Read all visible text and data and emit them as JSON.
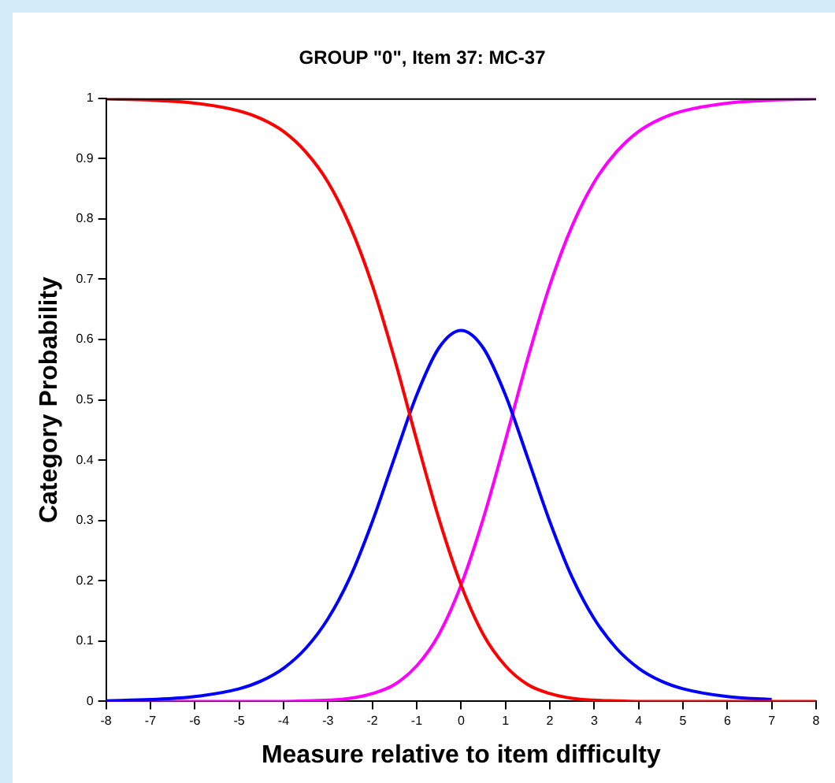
{
  "chart_data": {
    "type": "line",
    "title": "GROUP \"0\", Item 37: MC-37",
    "xlabel": "Measure relative to item difficulty",
    "ylabel": "Category Probability",
    "x": [
      -8,
      -7,
      -6,
      -5,
      -4.5,
      -4,
      -3.5,
      -3,
      -2.5,
      -2,
      -1.5,
      -1,
      -0.5,
      0,
      0.5,
      1,
      1.5,
      2,
      2.5,
      3,
      3.5,
      4,
      4.5,
      5,
      6,
      7,
      8
    ],
    "series": [
      {
        "color": "#ff0000",
        "values": [
          0.999,
          0.997,
          0.992,
          0.979,
          0.966,
          0.945,
          0.911,
          0.861,
          0.788,
          0.69,
          0.568,
          0.433,
          0.303,
          0.193,
          0.111,
          0.059,
          0.028,
          0.013,
          0.005,
          0.002,
          0.001,
          0,
          0,
          0,
          0,
          0,
          0
        ]
      },
      {
        "color": "#0000ff",
        "values": [
          0.001,
          0.003,
          0.008,
          0.021,
          0.034,
          0.055,
          0.088,
          0.137,
          0.206,
          0.298,
          0.404,
          0.508,
          0.586,
          0.615,
          0.586,
          0.508,
          0.404,
          0.298,
          0.206,
          0.137,
          0.088,
          0.055,
          0.034,
          0.021,
          0.008,
          0.003,
          null
        ]
      },
      {
        "color": "#ff00ff",
        "values": [
          0,
          0,
          0,
          0,
          0,
          0,
          0.001,
          0.002,
          0.005,
          0.013,
          0.028,
          0.059,
          0.111,
          0.193,
          0.303,
          0.433,
          0.568,
          0.69,
          0.788,
          0.861,
          0.911,
          0.945,
          0.966,
          0.979,
          0.992,
          0.997,
          0.999
        ]
      }
    ],
    "xlim": [
      -8,
      8
    ],
    "xticks": [
      -8,
      -7,
      -6,
      -5,
      -4,
      -3,
      -2,
      -1,
      0,
      1,
      2,
      3,
      4,
      5,
      6,
      7,
      8
    ],
    "ylim": [
      0,
      1
    ],
    "yticks": [
      0,
      0.1,
      0.2,
      0.3,
      0.4,
      0.5,
      0.6,
      0.7,
      0.8,
      0.9,
      1
    ],
    "grid": false,
    "legend": false,
    "marker": "none",
    "line_style": "solid"
  }
}
